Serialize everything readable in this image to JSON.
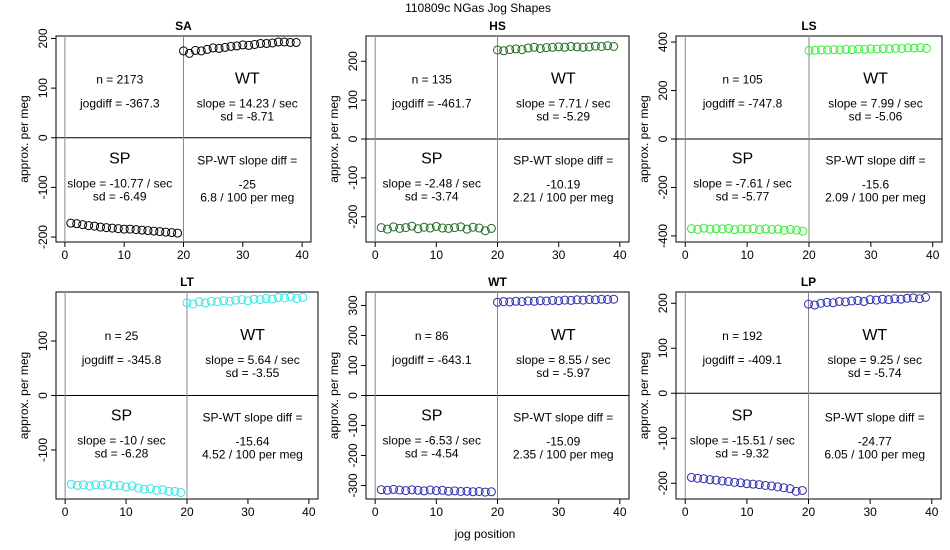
{
  "figure": {
    "title": "110809c   NGas Jog Shapes",
    "xlabel": "jog position",
    "ylabel": "approx. per meg"
  },
  "chart_data": [
    {
      "type": "scatter",
      "title": "SA",
      "color": "#000000",
      "x": [
        1,
        2,
        3,
        4,
        5,
        6,
        7,
        8,
        9,
        10,
        11,
        12,
        13,
        14,
        15,
        16,
        17,
        18,
        19,
        20,
        21,
        22,
        23,
        24,
        25,
        26,
        27,
        28,
        29,
        30,
        31,
        32,
        33,
        34,
        35,
        36,
        37,
        38,
        39
      ],
      "y": [
        -172,
        -173,
        -175,
        -177,
        -178,
        -180,
        -181,
        -182,
        -183,
        -184,
        -184,
        -185,
        -186,
        -187,
        -188,
        -189,
        -190,
        -191,
        -192,
        175,
        170,
        176,
        175,
        178,
        181,
        180,
        182,
        184,
        185,
        187,
        186,
        188,
        190,
        190,
        191,
        193,
        193,
        192,
        192
      ],
      "ylim": [
        -210,
        205
      ],
      "yticks": [
        -200,
        -100,
        0,
        100,
        200
      ],
      "xticks": [
        0,
        10,
        20,
        30,
        40
      ],
      "xlim": [
        -1.5,
        41.5
      ],
      "sp_label": "SP",
      "wt_label": "WT",
      "n": "n = 2173",
      "jogdiff": "jogdiff = -367.3",
      "sp_slope": "slope = -10.77 / sec",
      "sp_sd": "sd = -6.49",
      "wt_slope": "slope = 14.23 / sec",
      "wt_sd": "sd = -8.71",
      "diff_label": "SP-WT slope diff =",
      "diff_value": "-25",
      "diff_per": "6.8 / 100 per meg"
    },
    {
      "type": "scatter",
      "title": "HS",
      "color": "#1f6b1f",
      "x": [
        1,
        2,
        3,
        4,
        5,
        6,
        7,
        8,
        9,
        10,
        11,
        12,
        13,
        14,
        15,
        16,
        17,
        18,
        19,
        20,
        21,
        22,
        23,
        24,
        25,
        26,
        27,
        28,
        29,
        30,
        31,
        32,
        33,
        34,
        35,
        36,
        37,
        38,
        39
      ],
      "y": [
        -228,
        -232,
        -226,
        -230,
        -228,
        -224,
        -231,
        -227,
        -229,
        -225,
        -229,
        -230,
        -228,
        -226,
        -232,
        -227,
        -229,
        -236,
        -230,
        229,
        227,
        230,
        232,
        230,
        234,
        236,
        233,
        235,
        236,
        237,
        236,
        238,
        237,
        236,
        237,
        239,
        238,
        240,
        238
      ],
      "ylim": [
        -265,
        265
      ],
      "yticks": [
        -200,
        -100,
        0,
        100,
        200
      ],
      "xticks": [
        0,
        10,
        20,
        30,
        40
      ],
      "xlim": [
        -1.5,
        41.5
      ],
      "sp_label": "SP",
      "wt_label": "WT",
      "n": "n = 135",
      "jogdiff": "jogdiff = -461.7",
      "sp_slope": "slope = -2.48 / sec",
      "sp_sd": "sd = -3.74",
      "wt_slope": "slope = 7.71 / sec",
      "wt_sd": "sd = -5.29",
      "diff_label": "SP-WT slope diff =",
      "diff_value": "-10.19",
      "diff_per": "2.21 / 100 per meg"
    },
    {
      "type": "scatter",
      "title": "LS",
      "color": "#33ee33",
      "x": [
        1,
        2,
        3,
        4,
        5,
        6,
        7,
        8,
        9,
        10,
        11,
        12,
        13,
        14,
        15,
        16,
        17,
        18,
        19,
        20,
        21,
        22,
        23,
        24,
        25,
        26,
        27,
        28,
        29,
        30,
        31,
        32,
        33,
        34,
        35,
        36,
        37,
        38,
        39
      ],
      "y": [
        -370,
        -373,
        -368,
        -372,
        -370,
        -371,
        -369,
        -374,
        -371,
        -372,
        -370,
        -374,
        -371,
        -373,
        -372,
        -377,
        -373,
        -376,
        -380,
        365,
        366,
        368,
        367,
        369,
        368,
        370,
        369,
        371,
        370,
        372,
        371,
        373,
        372,
        374,
        373,
        376,
        375,
        377,
        374
      ],
      "ylim": [
        -425,
        425
      ],
      "yticks": [
        -400,
        -200,
        0,
        200,
        400
      ],
      "xticks": [
        0,
        10,
        20,
        30,
        40
      ],
      "xlim": [
        -1.5,
        41.5
      ],
      "sp_label": "SP",
      "wt_label": "WT",
      "n": "n = 105",
      "jogdiff": "jogdiff = -747.8",
      "sp_slope": "slope = -7.61 / sec",
      "sp_sd": "sd = -5.77",
      "wt_slope": "slope = 7.99 / sec",
      "wt_sd": "sd = -5.06",
      "diff_label": "SP-WT slope diff =",
      "diff_value": "-15.6",
      "diff_per": "2.09 / 100 per meg"
    },
    {
      "type": "scatter",
      "title": "LT",
      "color": "#33e6e6",
      "x": [
        1,
        2,
        3,
        4,
        5,
        6,
        7,
        8,
        9,
        10,
        11,
        12,
        13,
        14,
        15,
        16,
        17,
        18,
        19,
        20,
        21,
        22,
        23,
        24,
        25,
        26,
        27,
        28,
        29,
        30,
        31,
        32,
        33,
        34,
        35,
        36,
        37,
        38,
        39
      ],
      "y": [
        -163,
        -165,
        -164,
        -166,
        -164,
        -165,
        -163,
        -166,
        -165,
        -168,
        -166,
        -170,
        -172,
        -171,
        -174,
        -173,
        -176,
        -176,
        -178,
        170,
        168,
        172,
        170,
        173,
        172,
        174,
        173,
        175,
        176,
        174,
        177,
        176,
        178,
        177,
        180,
        179,
        181,
        178,
        180
      ],
      "ylim": [
        -190,
        190
      ],
      "yticks": [
        -100,
        0,
        100
      ],
      "xticks": [
        0,
        10,
        20,
        30,
        40
      ],
      "xlim": [
        -1.5,
        41.5
      ],
      "sp_label": "SP",
      "wt_label": "WT",
      "n": "n = 25",
      "jogdiff": "jogdiff = -345.8",
      "sp_slope": "slope = -10 / sec",
      "sp_sd": "sd = -6.28",
      "wt_slope": "slope = 5.64 / sec",
      "wt_sd": "sd = -3.55",
      "diff_label": "SP-WT slope diff =",
      "diff_value": "-15.64",
      "diff_per": "4.52 / 100 per meg"
    },
    {
      "type": "scatter",
      "title": "WT",
      "color": "#2b2bb0",
      "x": [
        1,
        2,
        3,
        4,
        5,
        6,
        7,
        8,
        9,
        10,
        11,
        12,
        13,
        14,
        15,
        16,
        17,
        18,
        19,
        20,
        21,
        22,
        23,
        24,
        25,
        26,
        27,
        28,
        29,
        30,
        31,
        32,
        33,
        34,
        35,
        36,
        37,
        38,
        39
      ],
      "y": [
        -314,
        -316,
        -313,
        -315,
        -317,
        -314,
        -316,
        -318,
        -315,
        -317,
        -316,
        -319,
        -318,
        -320,
        -319,
        -321,
        -320,
        -322,
        -321,
        311,
        313,
        312,
        314,
        313,
        315,
        314,
        316,
        315,
        317,
        316,
        318,
        317,
        319,
        318,
        320,
        319,
        321,
        320,
        321
      ],
      "ylim": [
        -345,
        345
      ],
      "yticks": [
        -300,
        -200,
        -100,
        0,
        100,
        200,
        300
      ],
      "xticks": [
        0,
        10,
        20,
        30,
        40
      ],
      "xlim": [
        -1.5,
        41.5
      ],
      "sp_label": "SP",
      "wt_label": "WT",
      "n": "n = 86",
      "jogdiff": "jogdiff = -643.1",
      "sp_slope": "slope = -6.53 / sec",
      "sp_sd": "sd = -4.54",
      "wt_slope": "slope = 8.55 / sec",
      "wt_sd": "sd = -5.97",
      "diff_label": "SP-WT slope diff =",
      "diff_value": "-15.09",
      "diff_per": "2.35 / 100 per meg"
    },
    {
      "type": "scatter",
      "title": "LP",
      "color": "#2b2bb0",
      "x": [
        1,
        2,
        3,
        4,
        5,
        6,
        7,
        8,
        9,
        10,
        11,
        12,
        13,
        14,
        15,
        16,
        17,
        18,
        19,
        20,
        21,
        22,
        23,
        24,
        25,
        26,
        27,
        28,
        29,
        30,
        31,
        32,
        33,
        34,
        35,
        36,
        37,
        38,
        39
      ],
      "y": [
        -187,
        -189,
        -190,
        -192,
        -193,
        -195,
        -196,
        -198,
        -199,
        -201,
        -202,
        -203,
        -205,
        -206,
        -208,
        -210,
        -212,
        -218,
        -216,
        198,
        196,
        200,
        202,
        201,
        204,
        203,
        205,
        206,
        204,
        208,
        207,
        209,
        208,
        210,
        209,
        211,
        212,
        210,
        213
      ],
      "ylim": [
        -235,
        225
      ],
      "yticks": [
        -200,
        -100,
        0,
        100,
        200
      ],
      "xticks": [
        0,
        10,
        20,
        30,
        40
      ],
      "xlim": [
        -1.5,
        41.5
      ],
      "sp_label": "SP",
      "wt_label": "WT",
      "n": "n = 192",
      "jogdiff": "jogdiff = -409.1",
      "sp_slope": "slope = -15.51 / sec",
      "sp_sd": "sd = -9.32",
      "wt_slope": "slope = 9.25 / sec",
      "wt_sd": "sd = -5.74",
      "diff_label": "SP-WT slope diff =",
      "diff_value": "-24.77",
      "diff_per": "6.05 / 100 per meg"
    }
  ]
}
